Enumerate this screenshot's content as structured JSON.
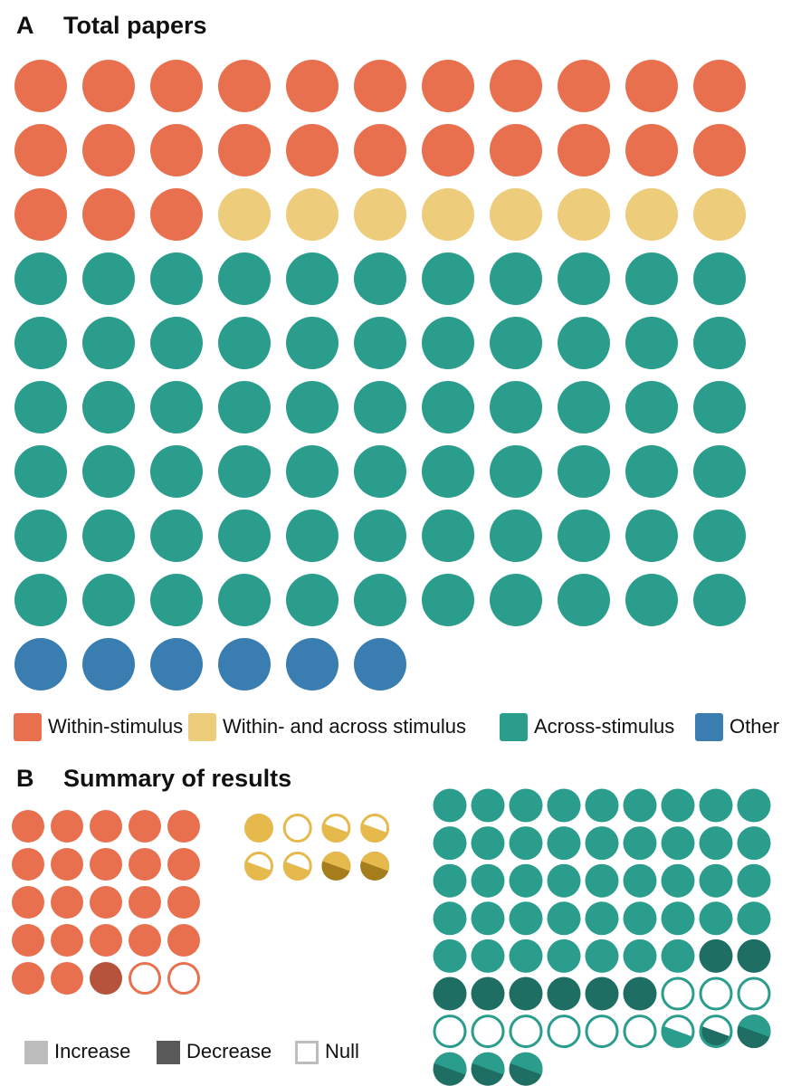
{
  "chart_data": [
    {
      "type": "waffle",
      "label": "A",
      "title": "Total papers",
      "columns": 11,
      "series": [
        {
          "name": "Within-stimulus",
          "color": "#e8704f",
          "value": 25
        },
        {
          "name": "Within- and across stimulus",
          "color": "#edcd7c",
          "value": 8
        },
        {
          "name": "Across-stimulus",
          "color": "#2a9d8c",
          "value": 66
        },
        {
          "name": "Other",
          "color": "#3a7db0",
          "value": 6
        }
      ]
    },
    {
      "type": "result-waffle",
      "label": "B",
      "title": "Summary of results",
      "legend": [
        {
          "name": "Increase",
          "color": "#bdbdbd"
        },
        {
          "name": "Decrease",
          "color": "#595959"
        },
        {
          "name": "Null",
          "color": "#ffffff"
        }
      ],
      "groups": [
        {
          "color": "#e8704f",
          "dark": "#b5533c",
          "columns": 5,
          "runs": [
            {
              "parts": [
                "Increase"
              ],
              "count": 22
            },
            {
              "parts": [
                "Decrease"
              ],
              "count": 1
            },
            {
              "parts": [
                "Null"
              ],
              "count": 2
            }
          ]
        },
        {
          "color": "#e6b94c",
          "dark": "#a57d1c",
          "columns": 4,
          "runs": [
            {
              "parts": [
                "Increase"
              ],
              "count": 1
            },
            {
              "parts": [
                "Null"
              ],
              "count": 1
            },
            {
              "parts": [
                "Null",
                "Increase"
              ],
              "count": 4
            },
            {
              "parts": [
                "Increase",
                "Decrease"
              ],
              "count": 2
            }
          ]
        },
        {
          "color": "#2a9d8c",
          "dark": "#1f6e63",
          "columns": 9,
          "runs": [
            {
              "parts": [
                "Increase"
              ],
              "count": 43
            },
            {
              "parts": [
                "Decrease"
              ],
              "count": 8
            },
            {
              "parts": [
                "Null"
              ],
              "count": 9
            },
            {
              "parts": [
                "Null",
                "Increase"
              ],
              "count": 1
            },
            {
              "parts": [
                "Null",
                "Decrease"
              ],
              "count": 1
            },
            {
              "parts": [
                "Increase",
                "Decrease"
              ],
              "count": 4
            }
          ]
        }
      ]
    }
  ]
}
